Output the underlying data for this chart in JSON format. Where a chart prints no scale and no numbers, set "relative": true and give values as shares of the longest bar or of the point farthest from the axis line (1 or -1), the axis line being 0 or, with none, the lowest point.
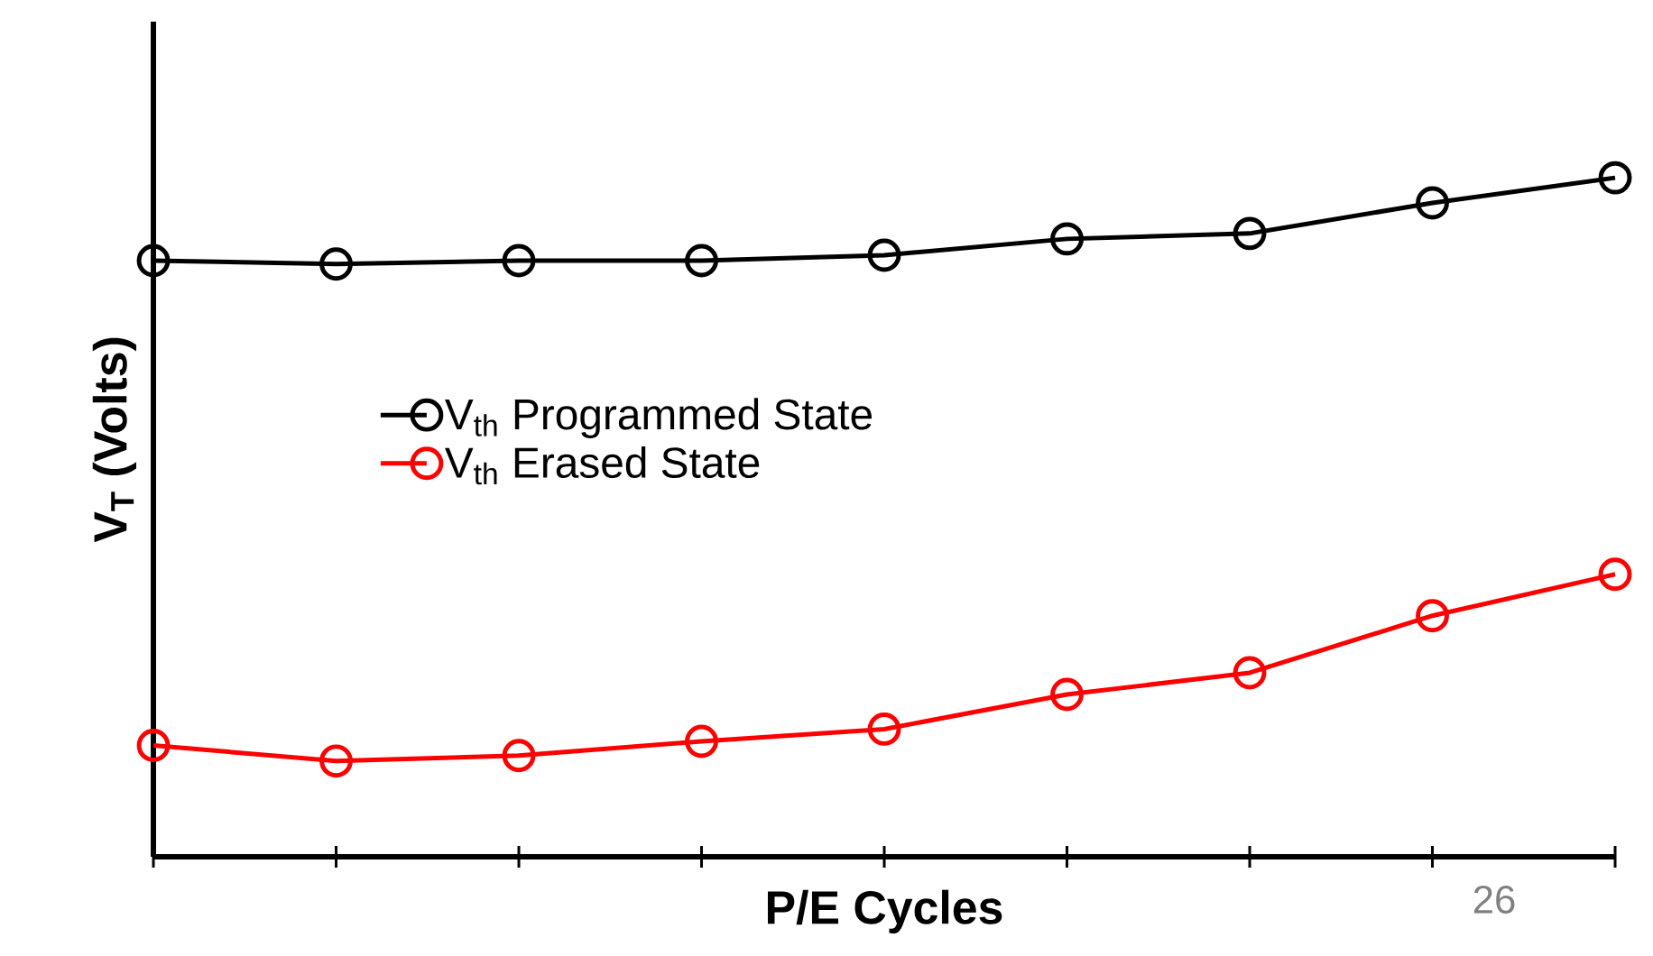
{
  "chart_data": {
    "type": "line",
    "relative": true,
    "tick_labels": false,
    "ylabel": "V$_{T}$ (Volts)",
    "xlabel": "P/E Cycles",
    "legend": "left",
    "marker": "circle",
    "line_style": "solid",
    "grid": false,
    "categories": [
      null,
      null,
      null,
      null,
      null,
      null,
      null,
      null,
      null
    ],
    "series": [
      {
        "name": "V$_{th}$ Programmed State",
        "color": "#000000",
        "values": [
          0.878,
          0.873,
          0.878,
          0.878,
          0.886,
          0.91,
          0.918,
          0.963,
          1
        ]
      },
      {
        "name": "V$_{th}$ Erased State",
        "color": "#ff0000",
        "values": [
          0.164,
          0.141,
          0.149,
          0.17,
          0.188,
          0.239,
          0.271,
          0.355,
          0.416
        ]
      }
    ],
    "annotations": [
      "26"
    ]
  }
}
